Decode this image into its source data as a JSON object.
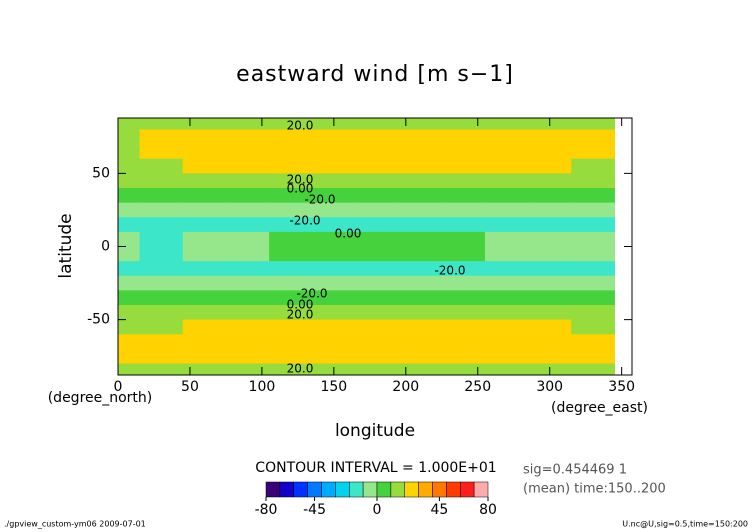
{
  "chart_data": {
    "type": "contour",
    "title": "eastward wind [m s−1]",
    "xlabel": "longitude",
    "ylabel": "latitude",
    "xunit": "(degree_east)",
    "yunit": "(degree_north)",
    "xlim": [
      0,
      357.1875
    ],
    "ylim": [
      -87.86,
      87.86
    ],
    "xticks": [
      0,
      50,
      100,
      150,
      200,
      250,
      300,
      350
    ],
    "yticks": [
      -50,
      0,
      50
    ],
    "x": [
      0,
      30,
      60,
      90,
      120,
      150,
      180,
      210,
      240,
      270,
      300,
      330
    ],
    "y": [
      85,
      75,
      65,
      55,
      45,
      35,
      25,
      15,
      5,
      -5,
      -15,
      -25,
      -35,
      -45,
      -55,
      -65,
      -75,
      -85
    ],
    "z": [
      [
        14,
        14,
        14,
        14,
        14,
        14,
        14,
        14,
        14,
        14,
        14,
        14
      ],
      [
        18,
        22,
        24,
        25,
        25,
        25,
        25,
        25,
        25,
        24,
        22,
        20
      ],
      [
        16,
        21,
        24,
        25,
        26,
        26,
        26,
        26,
        26,
        25,
        24,
        22
      ],
      [
        14,
        16,
        21,
        24,
        25,
        25,
        25,
        24,
        23,
        22,
        20,
        17
      ],
      [
        12,
        13,
        14,
        15,
        16,
        16,
        16,
        16,
        15,
        14,
        14,
        13
      ],
      [
        4,
        5,
        5,
        6,
        6,
        6,
        6,
        6,
        5,
        5,
        5,
        4
      ],
      [
        -6,
        -7,
        -8,
        -8,
        -8,
        -8,
        -8,
        -8,
        -8,
        -7,
        -7,
        -6
      ],
      [
        -12,
        -14,
        -15,
        -16,
        -16,
        -16,
        -16,
        -16,
        -15,
        -14,
        -13,
        -12
      ],
      [
        -5,
        -12,
        -10,
        -6,
        2,
        5,
        6,
        5,
        2,
        -5,
        -8,
        -6
      ],
      [
        -5,
        -12,
        -10,
        -6,
        2,
        5,
        6,
        5,
        2,
        -5,
        -8,
        -6
      ],
      [
        -12,
        -14,
        -15,
        -16,
        -16,
        -16,
        -16,
        -16,
        -15,
        -14,
        -13,
        -12
      ],
      [
        -6,
        -7,
        -8,
        -8,
        -8,
        -8,
        -8,
        -8,
        -8,
        -7,
        -7,
        -6
      ],
      [
        3,
        4,
        5,
        5,
        6,
        6,
        6,
        6,
        5,
        5,
        4,
        3
      ],
      [
        13,
        14,
        15,
        16,
        17,
        17,
        17,
        17,
        16,
        15,
        14,
        13
      ],
      [
        15,
        18,
        22,
        24,
        25,
        25,
        25,
        25,
        24,
        23,
        21,
        18
      ],
      [
        22,
        24,
        25,
        26,
        26,
        26,
        26,
        26,
        26,
        25,
        24,
        23
      ],
      [
        24,
        25,
        25,
        25,
        25,
        25,
        25,
        25,
        25,
        25,
        25,
        24
      ],
      [
        14,
        14,
        14,
        14,
        14,
        14,
        14,
        14,
        14,
        14,
        14,
        14
      ]
    ],
    "contour_labels": [
      "20.0",
      "20.0",
      "0.00",
      "-20.0",
      "-20.0",
      "0.00",
      "-20.0",
      "-20.0",
      "0.00",
      "20.0",
      "20.0"
    ],
    "contour_interval": "CONTOUR INTERVAL = 1.000E+01",
    "colorbar": {
      "levels": [
        -80,
        -70,
        -60,
        -50,
        -40,
        -30,
        -20,
        -10,
        0,
        10,
        20,
        30,
        40,
        50,
        60,
        70,
        80
      ],
      "colors": [
        "#3c0078",
        "#1400c8",
        "#0032ff",
        "#0078ff",
        "#00aaff",
        "#00d2f0",
        "#3ce6c8",
        "#96e68c",
        "#46d23c",
        "#96dc3c",
        "#ffd200",
        "#ffaa00",
        "#ff7800",
        "#ff3c00",
        "#ff1e1e",
        "#ffaaaa"
      ],
      "ticks": [
        -80,
        -45,
        0,
        45,
        80
      ]
    },
    "info": [
      "sig=0.454469 1",
      "(mean) time:150..200"
    ],
    "footer_left": "./gpview_custom-ym06  2009-07-01",
    "footer_right": "U.nc@U,sig=0.5,time=150:200"
  }
}
